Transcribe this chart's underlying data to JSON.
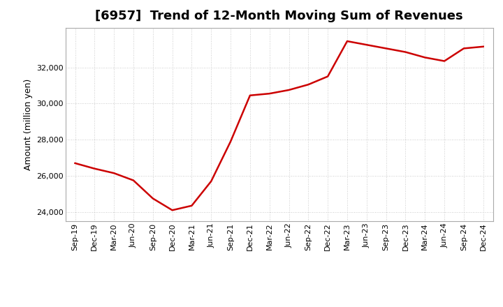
{
  "title": "[6957]  Trend of 12-Month Moving Sum of Revenues",
  "ylabel": "Amount (million yen)",
  "line_color": "#CC0000",
  "line_width": 1.8,
  "background_color": "#FFFFFF",
  "plot_bg_color": "#FFFFFF",
  "grid_color": "#AAAAAA",
  "ylim": [
    23500,
    34200
  ],
  "yticks": [
    24000,
    26000,
    28000,
    30000,
    32000
  ],
  "x_labels": [
    "Sep-19",
    "Dec-19",
    "Mar-20",
    "Jun-20",
    "Sep-20",
    "Dec-20",
    "Mar-21",
    "Jun-21",
    "Sep-21",
    "Dec-21",
    "Mar-22",
    "Jun-22",
    "Sep-22",
    "Dec-22",
    "Mar-23",
    "Jun-23",
    "Sep-23",
    "Dec-23",
    "Mar-24",
    "Jun-24",
    "Sep-24",
    "Dec-24"
  ],
  "values": [
    26700,
    26400,
    26150,
    25750,
    24750,
    24100,
    24350,
    25700,
    27900,
    30450,
    30550,
    30750,
    31050,
    31500,
    33450,
    33250,
    33050,
    32850,
    32550,
    32350,
    33050,
    33150
  ],
  "title_fontsize": 13,
  "tick_fontsize": 8,
  "ylabel_fontsize": 9
}
